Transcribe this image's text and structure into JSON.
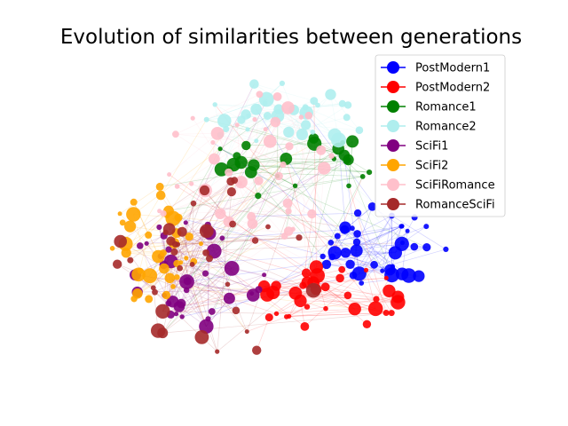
{
  "title": "Evolution of similarities between generations",
  "legend": {
    "placement": "top-right",
    "entries": [
      {
        "label": "PostModern1",
        "color": "#0000ff"
      },
      {
        "label": "PostModern2",
        "color": "#ff0000"
      },
      {
        "label": "Romance1",
        "color": "#008000"
      },
      {
        "label": "Romance2",
        "color": "#afeeee"
      },
      {
        "label": "SciFi1",
        "color": "#800080"
      },
      {
        "label": "SciFi2",
        "color": "#ffa500"
      },
      {
        "label": "SciFiRomance",
        "color": "#ffc0cb"
      },
      {
        "label": "RomanceSciFi",
        "color": "#a52a2a"
      }
    ]
  },
  "graph": {
    "type": "network",
    "node_groups": [
      "PostModern1",
      "PostModern2",
      "Romance1",
      "Romance2",
      "SciFi1",
      "SciFi2",
      "SciFiRomance",
      "RomanceSciFi"
    ]
  }
}
